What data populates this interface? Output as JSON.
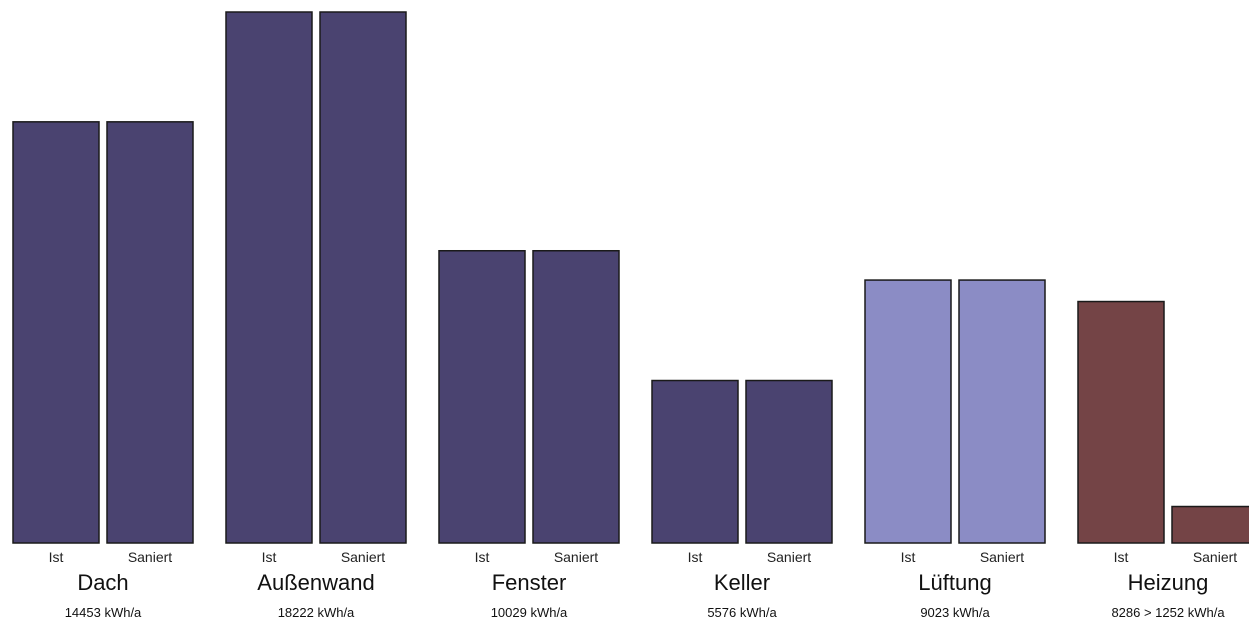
{
  "chart_data": {
    "type": "bar",
    "groups": [
      {
        "name": "Dach",
        "value_label": "14453 kWh/a",
        "color": "#4a4370",
        "bars": [
          {
            "label": "Ist",
            "value": 14453
          },
          {
            "label": "Saniert",
            "value": 14453
          }
        ]
      },
      {
        "name": "Außenwand",
        "value_label": "18222 kWh/a",
        "color": "#4a4370",
        "bars": [
          {
            "label": "Ist",
            "value": 18222
          },
          {
            "label": "Saniert",
            "value": 18222
          }
        ]
      },
      {
        "name": "Fenster",
        "value_label": "10029 kWh/a",
        "color": "#4a4370",
        "bars": [
          {
            "label": "Ist",
            "value": 10029
          },
          {
            "label": "Saniert",
            "value": 10029
          }
        ]
      },
      {
        "name": "Keller",
        "value_label": "5576 kWh/a",
        "color": "#4a4370",
        "bars": [
          {
            "label": "Ist",
            "value": 5576
          },
          {
            "label": "Saniert",
            "value": 5576
          }
        ]
      },
      {
        "name": "Lüftung",
        "value_label": "9023 kWh/a",
        "color": "#8b8cc5",
        "bars": [
          {
            "label": "Ist",
            "value": 9023
          },
          {
            "label": "Saniert",
            "value": 9023
          }
        ]
      },
      {
        "name": "Heizung",
        "value_label": "8286 > 1252 kWh/a",
        "color": "#744446",
        "bars": [
          {
            "label": "Ist",
            "value": 8286
          },
          {
            "label": "Saniert",
            "value": 1252
          }
        ]
      }
    ],
    "ylim": [
      0,
      18222
    ],
    "grid": false,
    "legend": "none",
    "title": "",
    "xlabel": "",
    "ylabel": ""
  }
}
